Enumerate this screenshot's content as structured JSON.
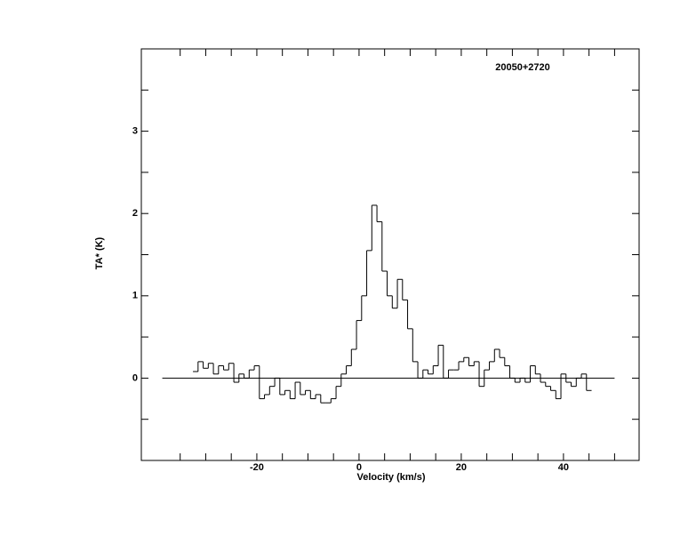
{
  "chart_data": {
    "type": "step",
    "annotation": "20050+2720",
    "xlabel": "Velocity (km/s)",
    "ylabel": "TA* (K)",
    "x": [
      -32,
      -31,
      -30,
      -29,
      -28,
      -27,
      -26,
      -25,
      -24,
      -23,
      -22,
      -21,
      -20,
      -19,
      -18,
      -17,
      -16,
      -15,
      -14,
      -13,
      -12,
      -11,
      -10,
      -9,
      -8,
      -7,
      -6,
      -5,
      -4,
      -3,
      -2,
      -1,
      0,
      1,
      2,
      3,
      4,
      5,
      6,
      7,
      8,
      9,
      10,
      11,
      12,
      13,
      14,
      15,
      16,
      17,
      18,
      19,
      20,
      21,
      22,
      23,
      24,
      25,
      26,
      27,
      28,
      29,
      30,
      31,
      32,
      33,
      34,
      35,
      36,
      37,
      38,
      39,
      40,
      41,
      42,
      43,
      44,
      45
    ],
    "values": [
      0.08,
      0.2,
      0.12,
      0.18,
      0.05,
      0.15,
      0.1,
      0.18,
      -0.05,
      0.05,
      0.0,
      0.1,
      0.15,
      -0.25,
      -0.2,
      -0.1,
      0.0,
      -0.2,
      -0.15,
      -0.25,
      -0.05,
      -0.2,
      -0.15,
      -0.25,
      -0.2,
      -0.3,
      -0.3,
      -0.25,
      -0.1,
      0.05,
      0.15,
      0.35,
      0.7,
      1.0,
      1.55,
      2.1,
      1.9,
      1.3,
      1.0,
      0.85,
      1.2,
      0.95,
      0.6,
      0.2,
      0.0,
      0.1,
      0.05,
      0.15,
      0.4,
      0.0,
      0.1,
      0.1,
      0.2,
      0.25,
      0.15,
      0.2,
      -0.1,
      0.1,
      0.2,
      0.35,
      0.25,
      0.15,
      0.0,
      -0.05,
      0.0,
      -0.05,
      0.15,
      0.05,
      -0.05,
      -0.1,
      -0.15,
      -0.25,
      0.05,
      -0.05,
      -0.1,
      0.0,
      0.05,
      -0.15
    ],
    "color": "#000000",
    "baseline": {
      "y": 0,
      "xmin": -38.5,
      "xmax": 50
    },
    "xlim": [
      -42.6,
      54.8
    ],
    "ylim": [
      -1,
      4
    ],
    "xticks": [
      -20,
      0,
      20,
      40
    ],
    "yticks": [
      0,
      1,
      2,
      3
    ],
    "xminorticks": [
      -35,
      -30,
      -25,
      -15,
      -10,
      -5,
      5,
      10,
      15,
      25,
      30,
      35,
      45,
      50
    ],
    "yminorticks": [
      -0.5,
      0.5,
      1.5,
      2.5,
      3.5
    ]
  }
}
